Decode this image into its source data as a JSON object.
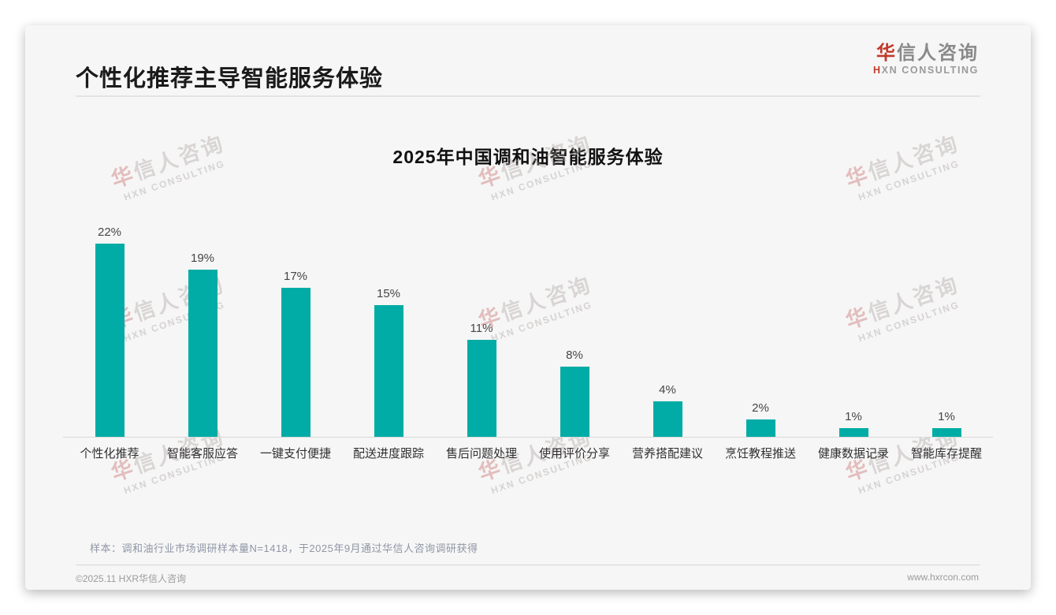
{
  "page": {
    "title": "个性化推荐主导智能服务体验"
  },
  "logo": {
    "zh_first": "华",
    "zh_rest": "信人咨询",
    "en_first": "H",
    "en_rest": "XN CONSULTING"
  },
  "watermark": {
    "zh_first": "华",
    "zh_rest": "信人咨询",
    "en": "HXN CONSULTING"
  },
  "chart_data": {
    "type": "bar",
    "title": "2025年中国调和油智能服务体验",
    "categories": [
      "个性化推荐",
      "智能客服应答",
      "一键支付便捷",
      "配送进度跟踪",
      "售后问题处理",
      "使用评价分享",
      "营养搭配建议",
      "烹饪教程推送",
      "健康数据记录",
      "智能库存提醒"
    ],
    "values": [
      22,
      19,
      17,
      15,
      11,
      8,
      4,
      2,
      1,
      1
    ],
    "unit": "%",
    "value_labels": [
      "22%",
      "19%",
      "17%",
      "15%",
      "11%",
      "8%",
      "4%",
      "2%",
      "1%",
      "1%"
    ],
    "xlabel": "",
    "ylabel": "",
    "ylim": [
      0,
      24
    ],
    "grid": false,
    "legend": "none",
    "bar_color": "#00aca5",
    "axis_line_color": "#d8d8d8"
  },
  "colors": {
    "brand_red": "#c0392b",
    "heading_text": "#1a1a1a",
    "card_background": "#f6f6f6"
  },
  "note": {
    "text": "样本：调和油行业市场调研样本量N=1418，于2025年9月通过华信人咨询调研获得"
  },
  "footer": {
    "copyright": "©2025.11 HXR华信人咨询",
    "website": "www.hxrcon.com"
  }
}
